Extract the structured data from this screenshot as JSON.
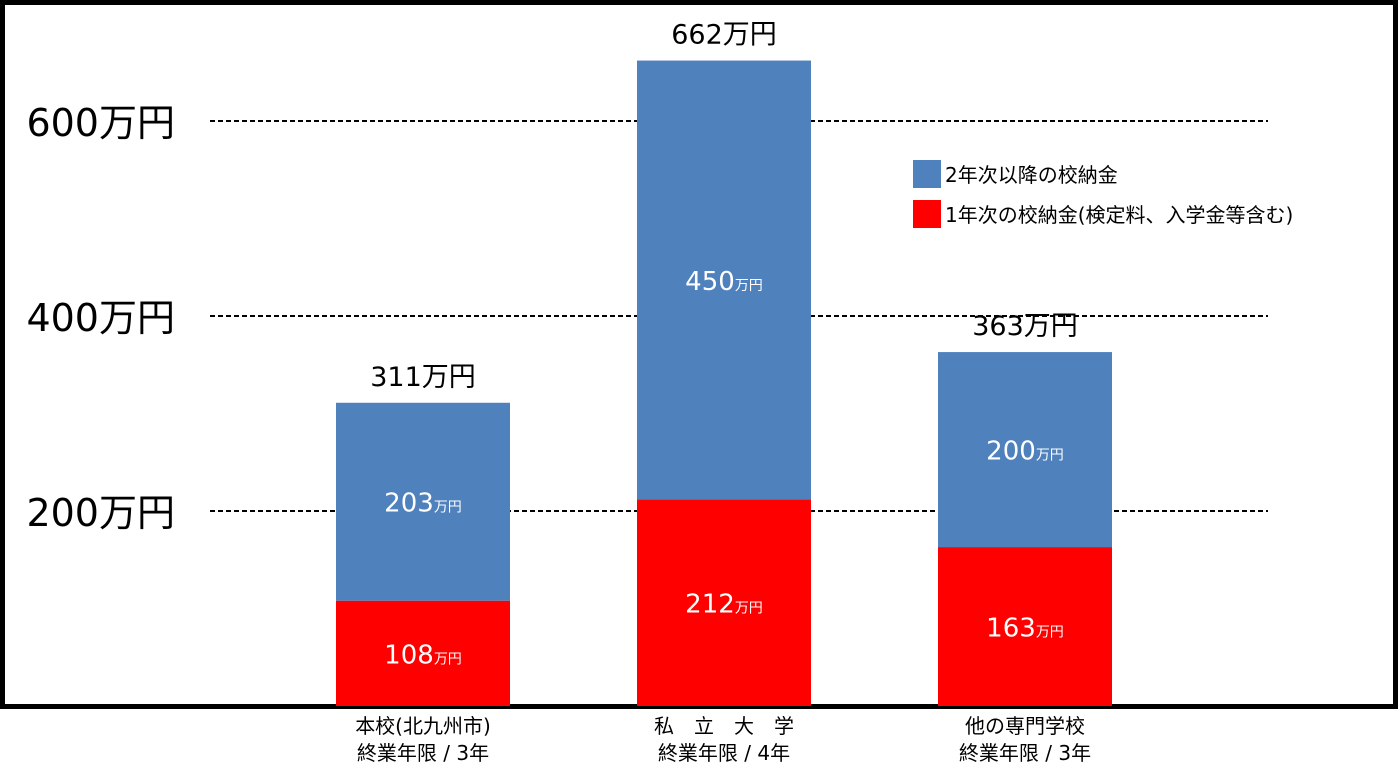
{
  "chart_data": {
    "type": "bar",
    "stacked": true,
    "categories": [
      [
        "本校(北九州市)",
        "終業年限 / 3年"
      ],
      [
        "私　立　大　学",
        "終業年限 / 4年"
      ],
      [
        "他の専門学校",
        "終業年限 / 3年"
      ]
    ],
    "series": [
      {
        "name": "1年次の校納金(検定料、入学金等含む)",
        "color": "#ff0000",
        "values": [
          108,
          212,
          163
        ]
      },
      {
        "name": "2年次以降の校納金",
        "color": "#4f81bd",
        "values": [
          203,
          450,
          200
        ]
      }
    ],
    "totals": [
      311,
      662,
      363
    ],
    "unit": "万円",
    "yticks": [
      200,
      400,
      600
    ],
    "ylim": [
      0,
      720
    ],
    "grid": "dashed",
    "legend": "top-right",
    "colors": {
      "frame": "#000000",
      "label_inside": "#ffffff",
      "text": "#000000"
    }
  }
}
